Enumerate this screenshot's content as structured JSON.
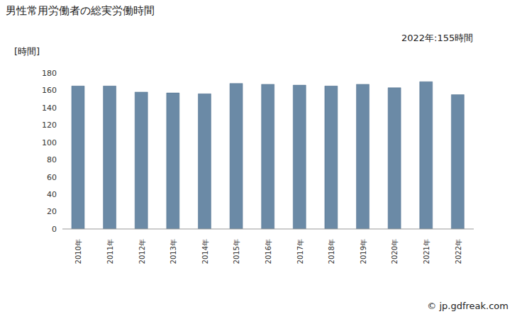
{
  "chart_data": {
    "type": "bar",
    "title": "男性常用労働者の総実労働時間",
    "ylabel": "[時間]",
    "annotation": "2022年:155時間",
    "source": "© jp.gdfreak.com",
    "categories": [
      "2010年",
      "2011年",
      "2012年",
      "2013年",
      "2014年",
      "2015年",
      "2016年",
      "2017年",
      "2018年",
      "2019年",
      "2020年",
      "2021年",
      "2022年"
    ],
    "values": [
      165,
      165,
      158,
      157,
      156,
      168,
      167,
      166,
      165,
      167,
      163,
      170,
      155
    ],
    "color": "#6b8aa6",
    "ylim": [
      0,
      180
    ],
    "yticks": [
      0,
      20,
      40,
      60,
      80,
      100,
      120,
      140,
      160,
      180
    ],
    "grid": false
  }
}
